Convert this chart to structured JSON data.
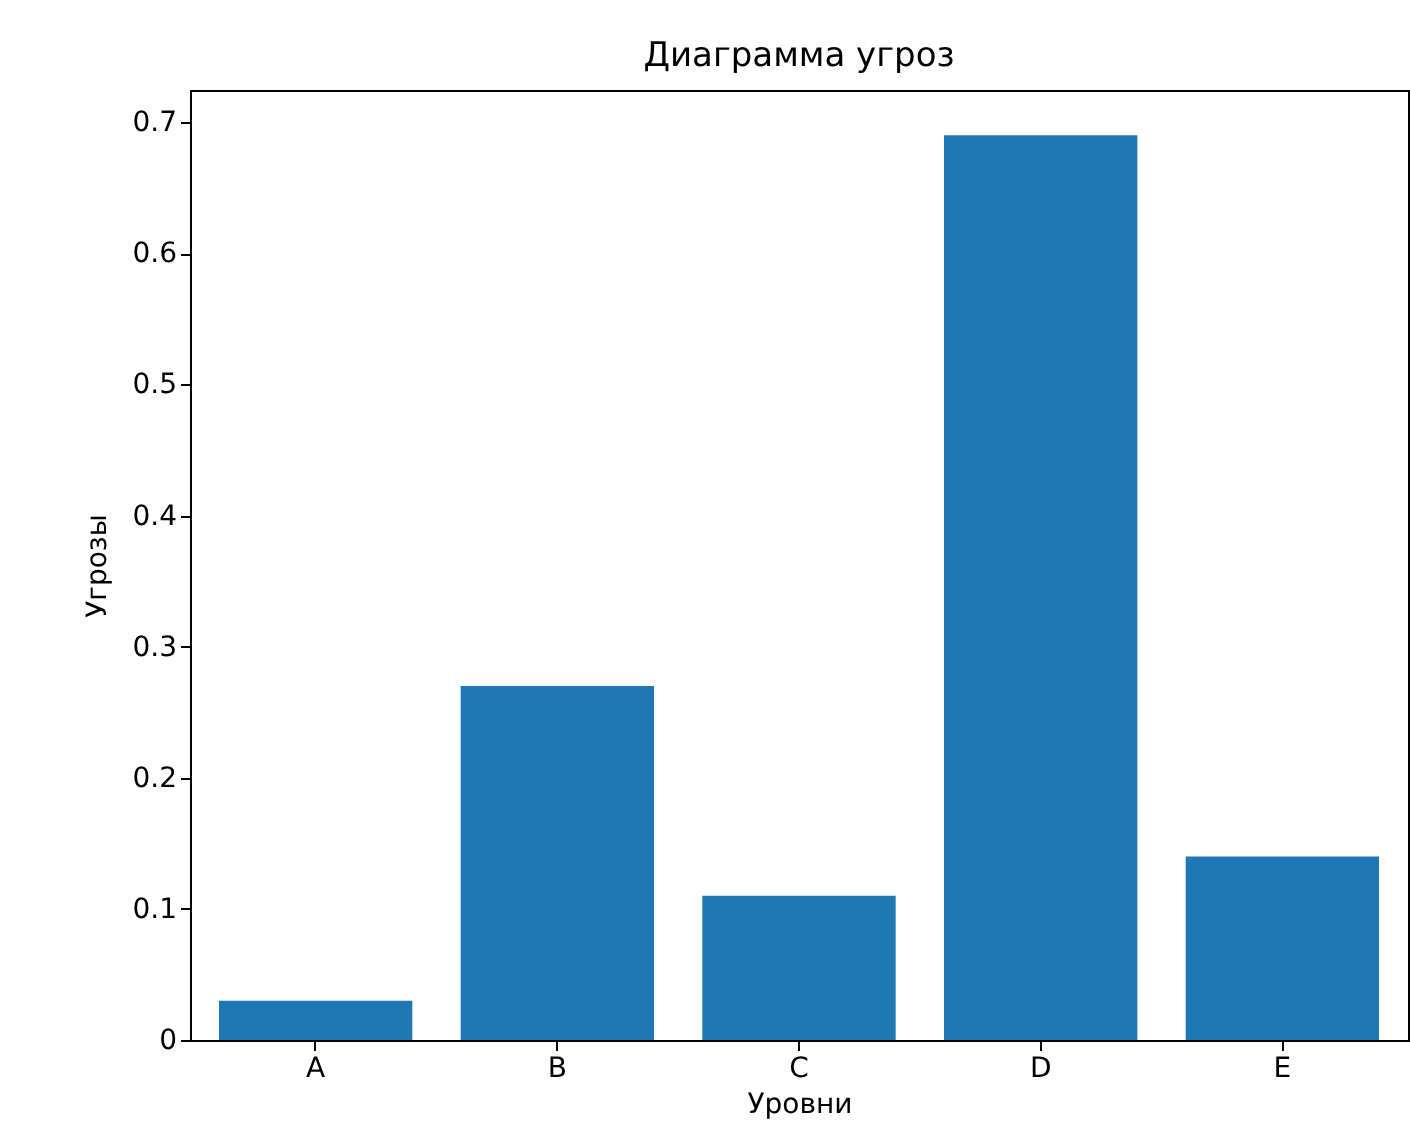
{
  "chart_data": {
    "type": "bar",
    "title": "Диаграмма угроз",
    "xlabel": "Уровни",
    "ylabel": "Угрозы",
    "categories": [
      "A",
      "B",
      "C",
      "D",
      "E"
    ],
    "values": [
      0.03,
      0.27,
      0.11,
      0.69,
      0.14
    ],
    "color": "#1f77b4",
    "ylim": [
      0,
      0.7245
    ],
    "yticks": [
      0,
      {
        "value": 0.1,
        "label": "0.1"
      },
      {
        "value": 0.2,
        "label": "0.2"
      },
      {
        "value": 0.3,
        "label": "0.3"
      },
      {
        "value": 0.4,
        "label": "0.4"
      },
      {
        "value": 0.5,
        "label": "0.5"
      },
      {
        "value": 0.6,
        "label": "0.6"
      },
      {
        "value": 0.7,
        "label": "0.7"
      }
    ],
    "grid": false
  }
}
